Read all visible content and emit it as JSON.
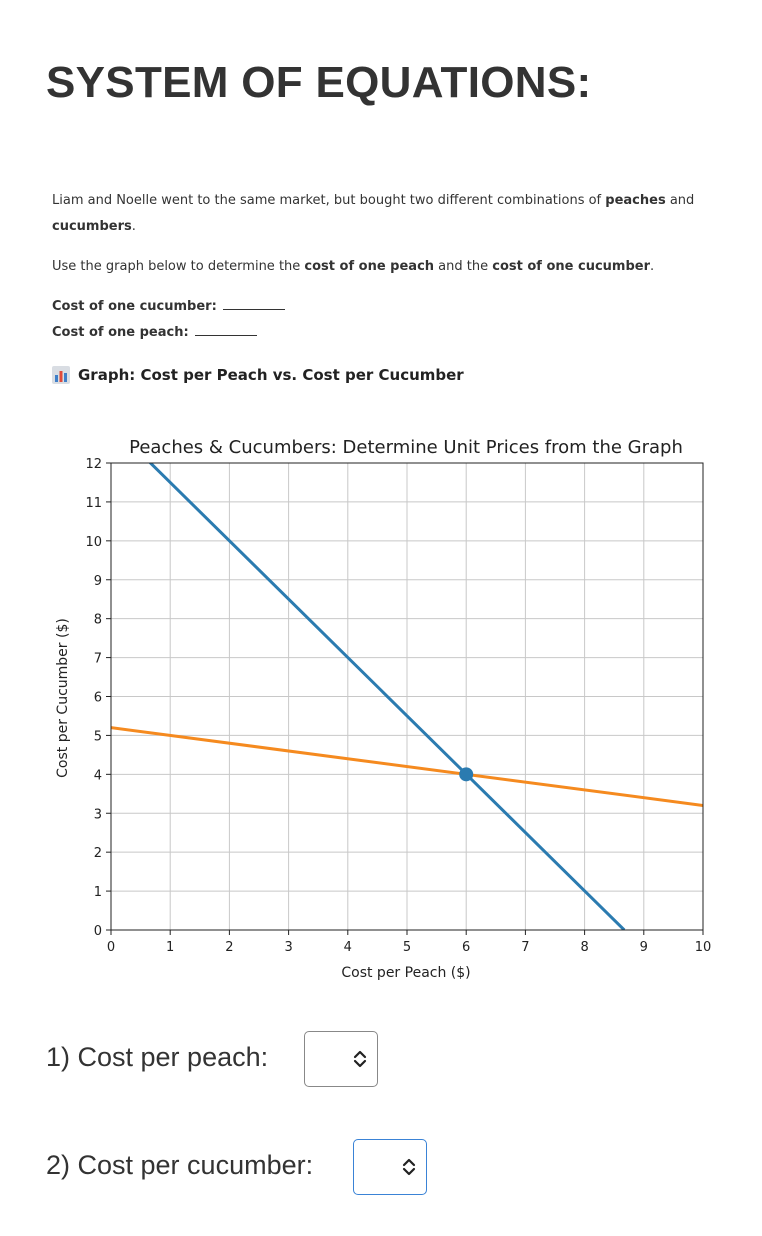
{
  "page": {
    "title": "SYSTEM OF EQUATIONS:"
  },
  "intro": {
    "p1_a": "Liam and Noelle went to the same market, but bought two different combinations of ",
    "p1_b": "peaches",
    "p1_c": " and ",
    "p1_d": "cucumbers",
    "p1_e": ".",
    "p2_a": "Use the graph below to determine the ",
    "p2_b": "cost of one peach",
    "p2_c": " and the ",
    "p2_d": "cost of one cucumber",
    "p2_e": ".",
    "cost_cucumber_label": "Cost of one cucumber:",
    "cost_peach_label": "Cost of one peach:"
  },
  "graph_heading": {
    "text": "Graph: Cost per Peach vs. Cost per Cucumber",
    "icon": "bar-chart-icon"
  },
  "chart_data": {
    "type": "line",
    "title": "Peaches & Cucumbers: Determine Unit Prices from the Graph",
    "xlabel": "Cost per Peach ($)",
    "ylabel": "Cost per Cucumber ($)",
    "xlim": [
      0,
      10
    ],
    "ylim": [
      0,
      12
    ],
    "xticks": [
      "0",
      "1",
      "2",
      "3",
      "4",
      "5",
      "6",
      "7",
      "8",
      "9",
      "10"
    ],
    "yticks": [
      "0",
      "1",
      "2",
      "3",
      "4",
      "5",
      "6",
      "7",
      "8",
      "9",
      "10",
      "11",
      "12"
    ],
    "grid": true,
    "series": [
      {
        "color": "#2b7bb0",
        "x": [
          0,
          8.67
        ],
        "y": [
          13,
          0
        ]
      },
      {
        "color": "#f58a1f",
        "x": [
          0,
          10
        ],
        "y": [
          5.2,
          3.2
        ]
      }
    ],
    "points": [
      {
        "x": 6,
        "y": 4,
        "color": "#2b7bb0"
      }
    ]
  },
  "questions": [
    {
      "label": "1) Cost per peach:"
    },
    {
      "label": "2) Cost per cucumber:"
    }
  ],
  "colors": {
    "accent": "#3a83d6"
  }
}
